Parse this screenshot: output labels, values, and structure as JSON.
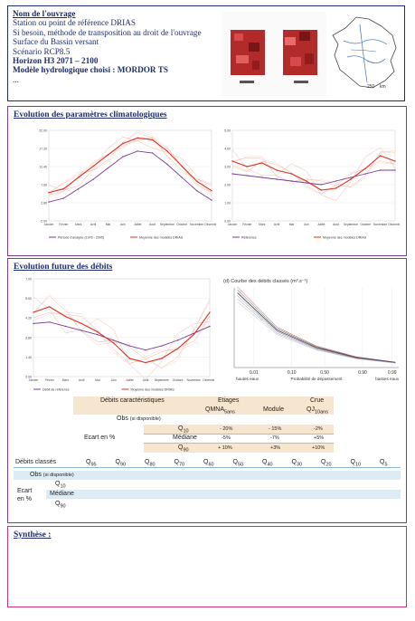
{
  "header": {
    "lines": [
      "Nom de l'ouvrage",
      "Station ou point de référence DRIAS",
      "Si besoin, méthode de transposition au droit de l'ouvrage",
      "Surface du Bassin versant",
      "Scénario RCP8.5",
      "Horizon H3 2071 – 2100",
      "Modèle hydrologique choisi : MORDOR TS",
      "..."
    ],
    "scale_label": "250",
    "scale_unit": "km"
  },
  "sections": {
    "climate": "Evolution des paramètres climatologiques",
    "flows": "Evolution future des débits",
    "synthesis": "Synthèse :"
  },
  "chart_data": [
    {
      "type": "line",
      "title": "",
      "x": [
        "Janvier",
        "Février",
        "Mars",
        "Avril",
        "Mai",
        "Juin",
        "Juillet",
        "Août",
        "Septembre",
        "Octobre",
        "Novembre",
        "Décembre"
      ],
      "ylim": [
        -2,
        22
      ],
      "series": [
        {
          "name": "Période d'analyse (1976 - 2005)",
          "values": [
            3.0,
            4.0,
            6.5,
            9.0,
            12.0,
            15.0,
            16.5,
            16.0,
            13.0,
            9.5,
            6.0,
            3.5
          ]
        },
        {
          "name": "Moyenne des modèles DRIAS",
          "values": [
            5.5,
            6.5,
            9.5,
            12.5,
            15.5,
            18.5,
            20.0,
            19.5,
            16.5,
            12.5,
            8.5,
            6.0
          ]
        }
      ]
    },
    {
      "type": "line",
      "title": "",
      "x": [
        "Janvier",
        "Février",
        "Mars",
        "Avril",
        "Mai",
        "Juin",
        "Juillet",
        "Août",
        "Septembre",
        "Octobre",
        "Novembre",
        "Décembre"
      ],
      "ylim": [
        0,
        5
      ],
      "series": [
        {
          "name": "Référence",
          "values": [
            2.6,
            2.5,
            2.4,
            2.3,
            2.2,
            2.1,
            2.0,
            2.2,
            2.4,
            2.6,
            2.8,
            2.8
          ]
        },
        {
          "name": "Moyenne des modèles DRIAS",
          "values": [
            3.3,
            3.0,
            3.2,
            2.8,
            2.6,
            2.2,
            1.7,
            1.8,
            2.3,
            2.9,
            3.6,
            3.3
          ]
        }
      ]
    },
    {
      "type": "line",
      "title": "",
      "x": [
        "Janvier",
        "Février",
        "Mars",
        "Avril",
        "Mai",
        "Juin",
        "Juillet",
        "Août",
        "Septembre",
        "Octobre",
        "Novembre",
        "Décembre"
      ],
      "ylim": [
        0,
        7
      ],
      "series": [
        {
          "name": "Débit de référence",
          "values": [
            3.8,
            3.9,
            3.6,
            3.3,
            3.0,
            2.6,
            2.2,
            1.9,
            2.2,
            2.6,
            3.1,
            3.6
          ]
        },
        {
          "name": "Moyenne des modèles DRIAS",
          "values": [
            4.6,
            5.0,
            4.3,
            3.8,
            3.2,
            2.4,
            1.3,
            1.0,
            1.3,
            2.0,
            3.0,
            4.6
          ]
        }
      ]
    },
    {
      "type": "line",
      "title": "(d) Courbe des débits classés (m³.s⁻¹)",
      "x": [
        0.01,
        0.1,
        0.5,
        0.9,
        0.99
      ],
      "xlabel_left": "hautes eaux",
      "xlabel_mid": "Probabilité de dépassement",
      "xlabel_right": "basses eaux",
      "series": [
        {
          "name": "",
          "values": [
            150,
            75,
            40,
            20,
            10
          ]
        }
      ]
    }
  ],
  "table1": {
    "col_headers": [
      "Débits caractéristiques",
      "Etiages",
      "Crue"
    ],
    "sub_headers": [
      "QMNA5ans",
      "Module",
      "QJ10ans"
    ],
    "obs_label": "Obs",
    "obs_note": "(si disponible)",
    "ecart_label": "Ecart en %",
    "rows": [
      {
        "label": "Q10",
        "values": [
          "- 20%",
          "- 15%",
          "-2%"
        ]
      },
      {
        "label": "Médiane",
        "values": [
          "-5%",
          "-7%",
          "+5%"
        ]
      },
      {
        "label": "Q90",
        "values": [
          "+ 10%",
          "+3%",
          "+10%"
        ]
      }
    ]
  },
  "table2": {
    "header_label": "Débits classés",
    "columns": [
      "Q95",
      "Q90",
      "Q80",
      "Q70",
      "Q60",
      "Q50",
      "Q40",
      "Q30",
      "Q20",
      "Q10",
      "Q5"
    ],
    "obs_label": "Obs",
    "obs_note": "(si disponible)",
    "ecart_label": "Ecart en %",
    "rows": [
      "Q10",
      "Médiane",
      "Q90"
    ]
  },
  "colors": {
    "navy": "#1f2d6b",
    "purple": "#7a3c94",
    "pink": "#c8327a",
    "red": "#e03020",
    "table_orange": "#f7e6cf",
    "table_blue": "#dcebf4"
  }
}
